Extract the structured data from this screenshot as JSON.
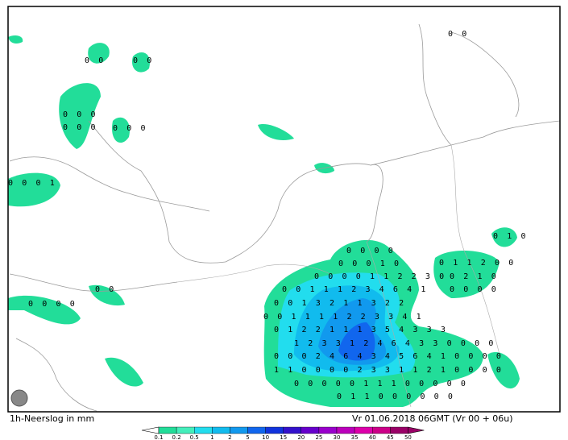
{
  "caption": {
    "left": "1h-Neerslog in mm",
    "right": "Vr 01.06.2018 06GMT (Vr 00 + 06u)"
  },
  "legend": {
    "labels": [
      "0.1",
      "0.2",
      "0.5",
      "1",
      "2",
      "5",
      "10",
      "15",
      "20",
      "25",
      "30",
      "35",
      "40",
      "45",
      "50"
    ],
    "colors": [
      "#22dd99",
      "#44eebb",
      "#22ddee",
      "#11bbee",
      "#1199ee",
      "#1166ee",
      "#1133dd",
      "#3311cc",
      "#6600cc",
      "#9900cc",
      "#bb00bb",
      "#dd00aa",
      "#cc0088",
      "#990066"
    ]
  },
  "map": {
    "rows": [
      "0 0 0 0",
      "0 0 0 1 0",
      "0 0 0 0 1 1 2 2 3 0",
      "0 0 1 1 1 2 3 4 6 4 1",
      "0 0 1 3 2 1 1 3 2 2",
      "0 0 1 1 1 1 2 2 3 3 4 1",
      "0 1 2 2 1 1 1 3 5 4 3 3 3",
      "1 2 3 3 1 2 4 6 4 3 3 0 0 0 0",
      "0 0 0 2 4 6 4 3 4 5 6 4 1 0 0 0 0",
      "1 1 0 0 0 0 2 3 3 1 1 2 1 0 0 0 0",
      "0 0 0 0 0 1 1 1 0 0 0 0 0",
      "0 1 1 0 0 0 0 0 0",
      "0 1 0",
      "0 1 1 2 0 0",
      "0 2 1 0",
      "0 0 0 0",
      "0 0",
      "0 0",
      "0 0",
      "0 0 0",
      "0 0 0",
      "0 0 0",
      "0 0 0 1",
      "0 0 0 0",
      "0 0"
    ]
  }
}
